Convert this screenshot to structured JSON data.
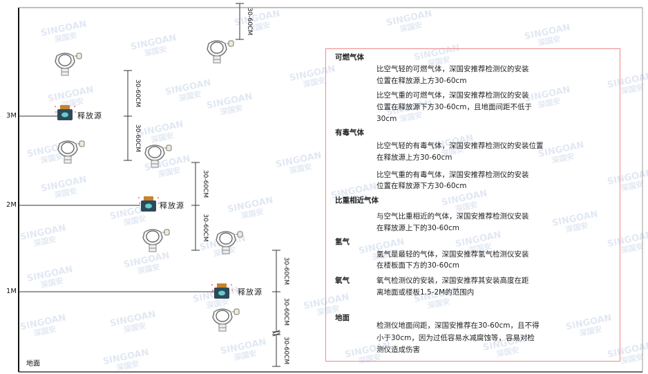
{
  "watermark": {
    "brand": "SINGOAN",
    "cn": "深国安"
  },
  "levels": [
    "3M",
    "2M",
    "1M"
  ],
  "ground_label": "地面",
  "source_label": "释放源",
  "dimension_label": "30-60CM",
  "colors": {
    "box_border": "#e88888",
    "source_body": "#2c4a5a",
    "source_cap": "#c8832c"
  },
  "info": {
    "sections": [
      {
        "title": "可燃气体",
        "paragraphs": [
          [
            "比空气轻的可燃气体，深国安推荐检测仪的安装",
            "位置在释放源上方30-60cm"
          ],
          [
            "比空气重的可燃气体，深国安推荐检测仪的安装",
            "位置在释放源下方30-60cm，且地面间距不低于",
            "30cm"
          ]
        ]
      },
      {
        "title": "有毒气体",
        "paragraphs": [
          [
            "比空气轻的有毒气体，深国安推荐检测仪的安装位置",
            "在释放源上方30-60cm"
          ],
          [
            "比空气重的有毒气体，深国安推荐检测仪的安装",
            "位置在释放源下方30-60cm"
          ]
        ]
      },
      {
        "title": "比重相近气体",
        "paragraphs": [
          [
            "与空气比重相近的气体，深国安推荐检测仪安装",
            "在释放源上下的30-60cm"
          ]
        ]
      },
      {
        "title": "氢气",
        "paragraphs": [
          [
            "氢气是最轻的气体，深国安推荐氢气检测仪安装",
            "在楼板面下方的30-60cm"
          ]
        ]
      },
      {
        "title": "氧气",
        "paragraphs": [
          [
            "氧气检测仪的安装，深国安推荐其安装高度在距",
            "离地面或楼板1.5-2M的范围内"
          ]
        ]
      },
      {
        "title": "地面",
        "paragraphs": [
          [
            "检测仪地面间距，深国安推荐在30-60cm，且不得",
            "小于30cm，因为过低容易水减腐蚀等，容易对检",
            "测仪造成伤害"
          ]
        ]
      }
    ]
  }
}
